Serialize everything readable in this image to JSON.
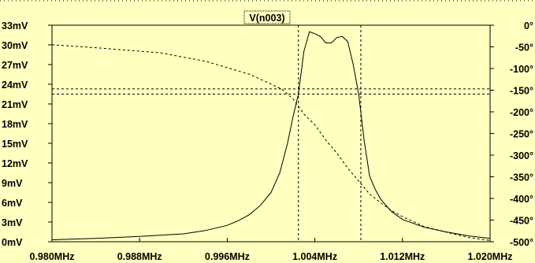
{
  "colors": {
    "background": "#ffffc0",
    "trace": "#000000",
    "grid": "#000000"
  },
  "chart_data": {
    "type": "line",
    "title": "V(n003)",
    "x_tick_labels": [
      "0.980MHz",
      "0.988MHz",
      "0.996MHz",
      "1.004MHz",
      "1.012MHz",
      "1.020MHz"
    ],
    "x_ticks": [
      0.98,
      0.988,
      0.996,
      1.004,
      1.012,
      1.02
    ],
    "y_left_tick_labels": [
      "0mV",
      "3mV",
      "6mV",
      "9mV",
      "12mV",
      "15mV",
      "18mV",
      "21mV",
      "24mV",
      "27mV",
      "30mV",
      "33mV"
    ],
    "y_left_ticks": [
      0,
      3,
      6,
      9,
      12,
      15,
      18,
      21,
      24,
      27,
      30,
      33
    ],
    "y_right_tick_labels": [
      "0°",
      "-50°",
      "-100°",
      "-150°",
      "-200°",
      "-250°",
      "-300°",
      "-350°",
      "-400°",
      "-450°",
      "-500°"
    ],
    "y_right_ticks": [
      0,
      -50,
      -100,
      -150,
      -200,
      -250,
      -300,
      -350,
      -400,
      -450,
      -500
    ],
    "xlim": [
      0.98,
      1.02
    ],
    "ylim_left": [
      0,
      33
    ],
    "ylim_right": [
      -500,
      0
    ],
    "grid": false,
    "cursors": {
      "vertical_x": [
        1.0025,
        1.0082
      ],
      "horizontal_mV": [
        23.3,
        22.5
      ]
    },
    "series": [
      {
        "axis": "left",
        "style": "solid",
        "x": [
          0.98,
          0.984,
          0.988,
          0.992,
          0.994,
          0.996,
          0.997,
          0.998,
          0.999,
          1.0,
          1.0008,
          1.0015,
          1.002,
          1.0025,
          1.003,
          1.0035,
          1.004,
          1.0045,
          1.005,
          1.0055,
          1.006,
          1.0065,
          1.007,
          1.0075,
          1.008,
          1.0085,
          1.009,
          1.0095,
          1.01,
          1.011,
          1.012,
          1.014,
          1.016,
          1.018,
          1.02
        ],
        "y": [
          0.3,
          0.5,
          0.8,
          1.2,
          1.7,
          2.5,
          3.2,
          4.1,
          5.5,
          7.5,
          10.5,
          15.0,
          19.0,
          22.5,
          29.0,
          32.0,
          31.7,
          31.3,
          30.3,
          30.3,
          31.1,
          31.3,
          30.5,
          27.0,
          22.5,
          15.5,
          10.0,
          8.0,
          6.5,
          4.6,
          3.4,
          2.2,
          1.5,
          0.9,
          0.5
        ]
      },
      {
        "axis": "right",
        "style": "dashed",
        "x": [
          0.98,
          0.984,
          0.988,
          0.99,
          0.992,
          0.994,
          0.996,
          0.998,
          1.0,
          1.001,
          1.002,
          1.003,
          1.004,
          1.005,
          1.006,
          1.007,
          1.008,
          1.009,
          1.01,
          1.011,
          1.012,
          1.014,
          1.016,
          1.018,
          1.02
        ],
        "y": [
          -45,
          -52,
          -60,
          -64,
          -74,
          -83,
          -98,
          -113,
          -136,
          -148,
          -170,
          -205,
          -230,
          -265,
          -295,
          -330,
          -360,
          -390,
          -410,
          -428,
          -442,
          -465,
          -478,
          -490,
          -497
        ]
      }
    ]
  }
}
